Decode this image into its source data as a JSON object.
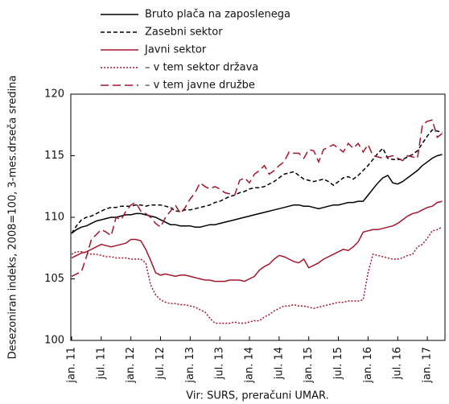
{
  "chart_data": {
    "type": "line",
    "y_label": "Desezoniran indeks, 2008=100, 3-mes.drseča sredina",
    "source": "Vir: SURS, preračuni UMAR.",
    "categories": [
      "jan. 11",
      null,
      null,
      null,
      null,
      null,
      "jul. 11",
      null,
      null,
      null,
      null,
      null,
      "jan. 12",
      null,
      null,
      null,
      null,
      null,
      "jul. 12",
      null,
      null,
      null,
      null,
      null,
      "jan. 13",
      null,
      null,
      null,
      null,
      null,
      "jul. 13",
      null,
      null,
      null,
      null,
      null,
      "jan. 14",
      null,
      null,
      null,
      null,
      null,
      "jul. 14",
      null,
      null,
      null,
      null,
      null,
      "jan. 15",
      null,
      null,
      null,
      null,
      null,
      "jul. 15",
      null,
      null,
      null,
      null,
      null,
      "jan. 16",
      null,
      null,
      null,
      null,
      null,
      "jul. 16",
      null,
      null,
      null,
      null,
      null,
      "jan. 17",
      null,
      null,
      null
    ],
    "ylim": [
      100,
      120
    ],
    "yticks": [
      100,
      105,
      110,
      115,
      120
    ],
    "series": [
      {
        "name": "Bruto plača na zaposlenega",
        "color": "#000000",
        "dash": "solid",
        "values": [
          108.7,
          109.0,
          109.2,
          109.3,
          109.5,
          109.7,
          109.8,
          109.9,
          110.0,
          110.0,
          110.1,
          110.2,
          110.2,
          110.3,
          110.3,
          110.2,
          110.1,
          110.0,
          109.8,
          109.6,
          109.4,
          109.4,
          109.3,
          109.3,
          109.3,
          109.2,
          109.2,
          109.3,
          109.4,
          109.4,
          109.5,
          109.6,
          109.7,
          109.8,
          109.9,
          110.0,
          110.1,
          110.2,
          110.3,
          110.4,
          110.5,
          110.6,
          110.7,
          110.8,
          110.9,
          111.0,
          111.0,
          110.9,
          110.9,
          110.8,
          110.7,
          110.8,
          110.9,
          111.0,
          111.0,
          111.1,
          111.2,
          111.2,
          111.3,
          111.3,
          111.8,
          112.3,
          112.8,
          113.2,
          113.4,
          112.8,
          112.7,
          112.9,
          113.2,
          113.5,
          113.8,
          114.2,
          114.5,
          114.8,
          115.0,
          115.1
        ]
      },
      {
        "name": "Zasebni sektor",
        "color": "#000000",
        "dash": "dashed",
        "values": [
          108.7,
          109.3,
          109.8,
          110.0,
          110.1,
          110.3,
          110.5,
          110.7,
          110.8,
          110.8,
          110.9,
          110.9,
          110.9,
          111.0,
          111.0,
          110.9,
          111.0,
          111.0,
          111.0,
          110.9,
          110.8,
          110.5,
          110.5,
          110.6,
          110.6,
          110.7,
          110.8,
          110.9,
          111.0,
          111.2,
          111.3,
          111.5,
          111.7,
          111.8,
          112.0,
          112.1,
          112.3,
          112.4,
          112.4,
          112.5,
          112.7,
          112.9,
          113.2,
          113.5,
          113.6,
          113.7,
          113.4,
          113.1,
          113.0,
          112.9,
          113.0,
          113.1,
          112.9,
          112.6,
          112.9,
          113.2,
          113.3,
          113.1,
          113.4,
          113.8,
          114.2,
          114.7,
          115.2,
          115.6,
          114.8,
          114.7,
          114.7,
          114.7,
          114.9,
          115.1,
          115.4,
          116.0,
          116.6,
          117.1,
          117.0,
          116.9
        ]
      },
      {
        "name": "Javni sektor",
        "color": "#a3162e",
        "dash": "solid",
        "values": [
          106.7,
          106.9,
          107.1,
          107.2,
          107.4,
          107.6,
          107.8,
          107.7,
          107.6,
          107.7,
          107.8,
          107.9,
          108.2,
          108.2,
          108.1,
          107.4,
          106.5,
          105.5,
          105.3,
          105.4,
          105.3,
          105.2,
          105.3,
          105.3,
          105.2,
          105.1,
          105.0,
          104.9,
          104.9,
          104.8,
          104.8,
          104.8,
          104.9,
          104.9,
          104.9,
          104.8,
          105.0,
          105.2,
          105.7,
          106.0,
          106.2,
          106.6,
          106.9,
          106.8,
          106.6,
          106.4,
          106.3,
          106.6,
          105.9,
          106.1,
          106.3,
          106.6,
          106.8,
          107.0,
          107.2,
          107.4,
          107.3,
          107.6,
          108.0,
          108.8,
          108.9,
          109.0,
          109.0,
          109.1,
          109.2,
          109.3,
          109.5,
          109.8,
          110.1,
          110.3,
          110.4,
          110.6,
          110.8,
          110.9,
          111.2,
          111.3
        ]
      },
      {
        "name": "– v tem sektor država",
        "color": "#a3162e",
        "dash": "dotted",
        "values": [
          107.0,
          107.2,
          107.2,
          107.1,
          107.0,
          107.0,
          106.9,
          106.8,
          106.8,
          106.7,
          106.7,
          106.7,
          106.6,
          106.6,
          106.6,
          106.3,
          104.5,
          103.7,
          103.3,
          103.1,
          103.0,
          103.0,
          102.9,
          102.9,
          102.8,
          102.7,
          102.5,
          102.3,
          101.8,
          101.4,
          101.4,
          101.4,
          101.4,
          101.5,
          101.4,
          101.4,
          101.5,
          101.6,
          101.6,
          101.9,
          102.1,
          102.4,
          102.6,
          102.8,
          102.8,
          102.9,
          102.8,
          102.8,
          102.7,
          102.6,
          102.7,
          102.8,
          102.9,
          103.0,
          103.1,
          103.1,
          103.2,
          103.2,
          103.2,
          103.3,
          105.5,
          107.0,
          106.9,
          106.8,
          106.7,
          106.6,
          106.6,
          106.7,
          106.9,
          107.0,
          107.6,
          107.8,
          108.3,
          108.9,
          109.0,
          109.2
        ]
      },
      {
        "name": "– v tem javne družbe",
        "color": "#a3162e",
        "dash": "longdash",
        "values": [
          105.2,
          105.4,
          105.6,
          106.8,
          108.2,
          108.6,
          109.0,
          108.8,
          108.5,
          110.0,
          109.8,
          110.5,
          111.0,
          111.2,
          110.5,
          110.3,
          110.0,
          109.5,
          109.2,
          110.0,
          110.5,
          111.0,
          110.3,
          110.8,
          111.5,
          112.0,
          112.8,
          112.5,
          112.3,
          112.5,
          112.3,
          112.0,
          111.9,
          111.8,
          113.0,
          113.2,
          112.8,
          113.5,
          113.8,
          114.2,
          113.5,
          113.8,
          114.2,
          114.5,
          115.3,
          115.2,
          115.2,
          114.8,
          115.5,
          115.4,
          114.5,
          115.5,
          115.7,
          115.9,
          115.6,
          115.3,
          116.0,
          115.6,
          116.0,
          115.3,
          115.9,
          115.0,
          114.9,
          114.8,
          114.9,
          115.0,
          114.8,
          114.6,
          115.0,
          114.9,
          114.8,
          117.5,
          117.8,
          117.9,
          116.5,
          116.8
        ]
      }
    ]
  }
}
